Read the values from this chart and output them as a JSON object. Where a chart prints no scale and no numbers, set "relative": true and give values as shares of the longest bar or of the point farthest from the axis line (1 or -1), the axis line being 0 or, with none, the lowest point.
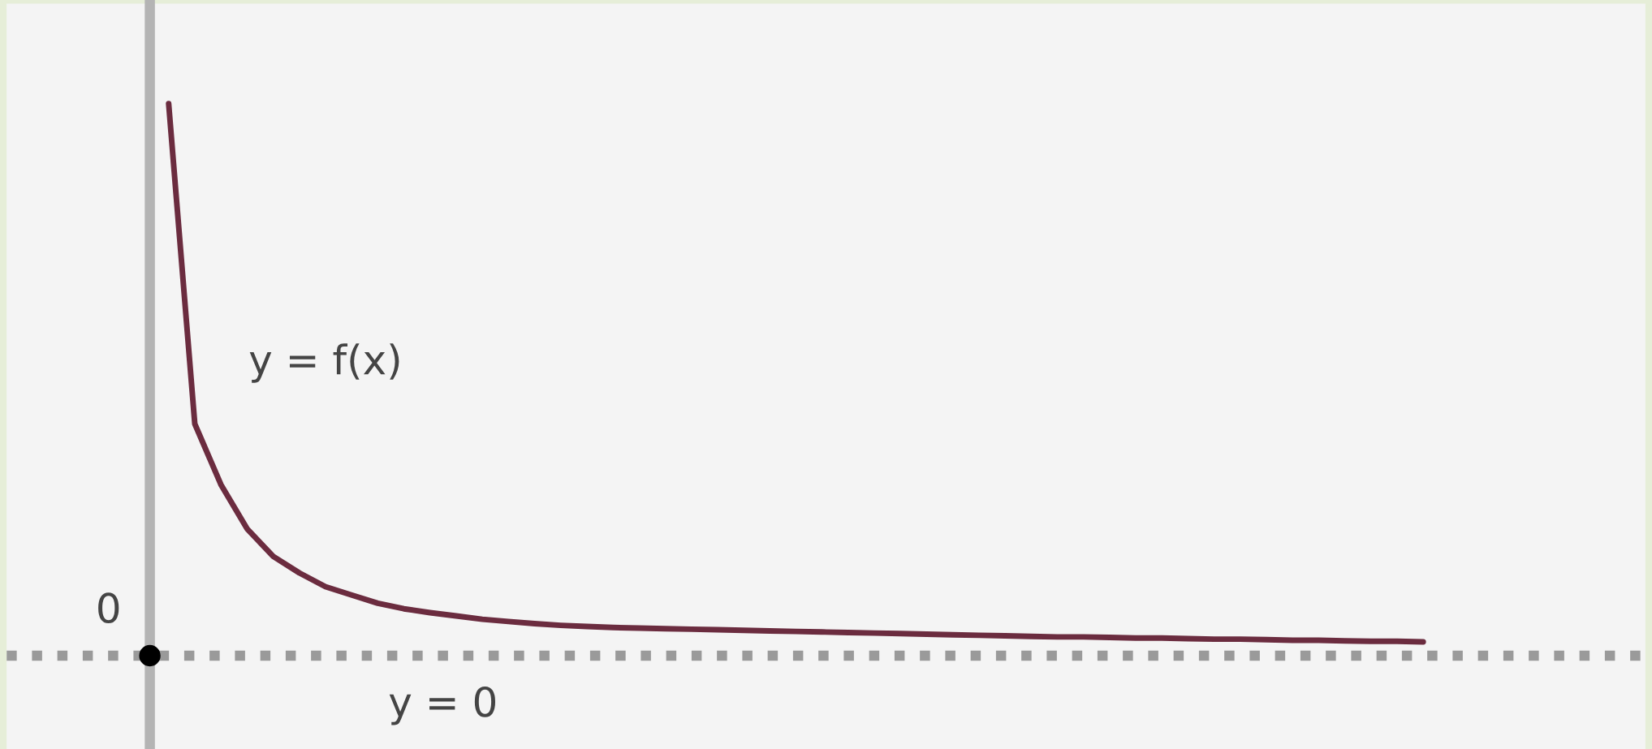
{
  "chart_data": {
    "type": "line",
    "relative": true,
    "categories": [
      null,
      null,
      null,
      null,
      null,
      null,
      null,
      null,
      null,
      null,
      null,
      null,
      null,
      null,
      null,
      null,
      null,
      null,
      null,
      null,
      null,
      null,
      null,
      null,
      null,
      null,
      null,
      null,
      null,
      null,
      null,
      null,
      null,
      null,
      null,
      null,
      null,
      null,
      null,
      null,
      null,
      null,
      null,
      null,
      null,
      null,
      null,
      null,
      null
    ],
    "series": [
      {
        "color": "#6b2c3f",
        "values": [
          1.0,
          0.42,
          0.31,
          0.23,
          0.18,
          0.15,
          0.125,
          0.11,
          0.095,
          0.085,
          0.078,
          0.072,
          0.066,
          0.062,
          0.058,
          0.055,
          0.053,
          0.051,
          0.05,
          0.049,
          0.048,
          0.047,
          0.046,
          0.045,
          0.044,
          0.043,
          0.042,
          0.041,
          0.04,
          0.039,
          0.038,
          0.037,
          0.036,
          0.035,
          0.034,
          0.034,
          0.033,
          0.032,
          0.032,
          0.031,
          0.03,
          0.03,
          0.029,
          0.028,
          0.028,
          0.027,
          0.026,
          0.026,
          0.025
        ]
      }
    ],
    "ref_lines": [
      {
        "axis": "y",
        "value": 0,
        "label": "y = 0",
        "color": "#9a9a9a",
        "line_style": "dashed"
      }
    ],
    "annotations": [
      "y = f(x)",
      "0"
    ],
    "marker": "none",
    "line_style": "solid",
    "legend": false
  }
}
